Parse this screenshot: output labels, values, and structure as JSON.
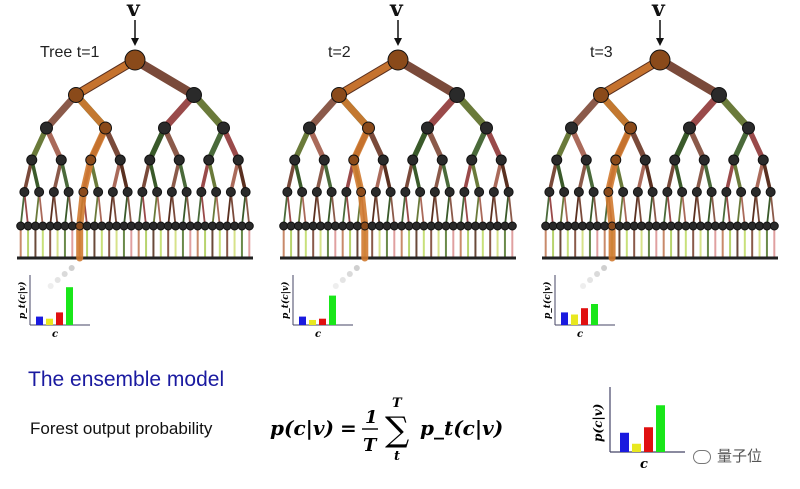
{
  "input_symbol": "v",
  "trees": [
    {
      "label": "Tree t=1",
      "path": [
        [
          0,
          0
        ],
        [
          1,
          0
        ],
        [
          2,
          1
        ],
        [
          3,
          2
        ],
        [
          4,
          4
        ],
        [
          5,
          8
        ]
      ],
      "histogram": [
        0.2,
        0.15,
        0.3,
        0.9
      ]
    },
    {
      "label": "t=2",
      "path": [
        [
          0,
          0
        ],
        [
          1,
          0
        ],
        [
          2,
          1
        ],
        [
          3,
          2
        ],
        [
          4,
          5
        ],
        [
          5,
          11
        ]
      ],
      "histogram": [
        0.2,
        0.12,
        0.15,
        0.7
      ]
    },
    {
      "label": "t=3",
      "path": [
        [
          0,
          0
        ],
        [
          1,
          0
        ],
        [
          2,
          1
        ],
        [
          3,
          2
        ],
        [
          4,
          4
        ],
        [
          5,
          9
        ]
      ],
      "histogram": [
        0.3,
        0.25,
        0.4,
        0.5
      ]
    }
  ],
  "per_tree_axis": {
    "ylabel": "p_t(c|v)",
    "xlabel": "c"
  },
  "ensemble": {
    "title": "The ensemble model",
    "text": "Forest output probability",
    "formula": {
      "lhs": "p(c|v)",
      "eq": "=",
      "numerator": "1",
      "denominator": "T",
      "sum_top": "T",
      "sum_bottom": "t",
      "term": "p_t(c|v)"
    },
    "histogram": [
      0.35,
      0.15,
      0.45,
      0.85
    ],
    "axis": {
      "ylabel": "p(c|v)",
      "xlabel": "c"
    }
  },
  "class_colors": [
    "#1a1adf",
    "#e8e820",
    "#e01010",
    "#19e619"
  ],
  "watermark": "量子位"
}
